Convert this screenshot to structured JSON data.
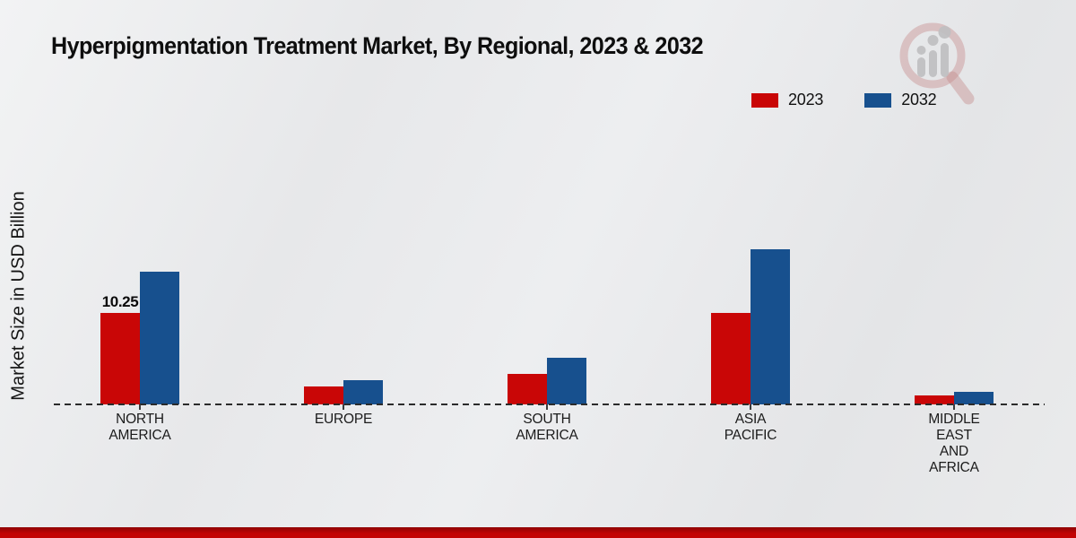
{
  "page": {
    "background_color": "#e8e9eb",
    "footer_bar_color": "#c30404",
    "zero_line_color": "#2b2b2b"
  },
  "watermark": {
    "icon": "magnifier-bar-chart-logo",
    "ring_color": "#c58b8b",
    "bars_color": "#bfbfc1"
  },
  "chart_data": {
    "type": "bar",
    "title": "Hyperpigmentation Treatment Market, By Regional, 2023 & 2032",
    "ylabel": "Market Size in USD Billion",
    "xlabel": "",
    "units": "USD Billion",
    "categories": [
      "NORTH\nAMERICA",
      "EUROPE",
      "SOUTH\nAMERICA",
      "ASIA\nPACIFIC",
      "MIDDLE\nEAST\nAND\nAFRICA"
    ],
    "series": [
      {
        "name": "2023",
        "color": "#c90606",
        "values": [
          10.25,
          2.0,
          3.4,
          10.2,
          1.0
        ],
        "value_labels": [
          "10.25",
          "",
          "",
          "",
          ""
        ]
      },
      {
        "name": "2032",
        "color": "#17508e",
        "values": [
          14.85,
          2.75,
          5.2,
          17.3,
          1.4
        ],
        "value_labels": [
          "",
          "",
          "",
          "",
          ""
        ]
      }
    ],
    "ylim": [
      0,
      18
    ],
    "grid": false,
    "y_axis_ticks": "none",
    "zero_line_style": "dashed",
    "legend_position": "top-right",
    "bar_value_labels_shown": [
      "NORTH AMERICA 2023"
    ]
  }
}
